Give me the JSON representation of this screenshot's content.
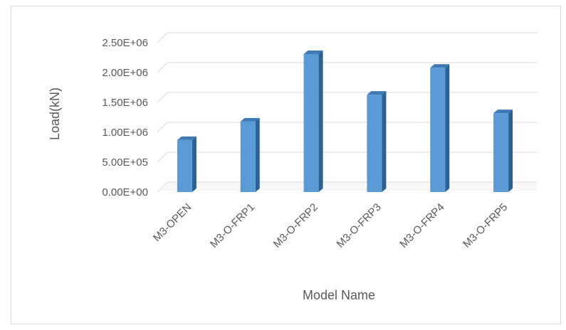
{
  "chart_data": {
    "type": "bar",
    "title": "",
    "xlabel": "Model Name",
    "ylabel": "Load(kN)",
    "categories": [
      "M3-OPEN",
      "M3-O-FRP1",
      "M3-O-FRP2",
      "M3-O-FRP3",
      "M3-O-FRP4",
      "M3-O-FRP5"
    ],
    "values": [
      870000,
      1180000,
      2310000,
      1630000,
      2080000,
      1320000
    ],
    "ylim": [
      0,
      2500000
    ],
    "yticks": [
      "0.00E+00",
      "5.00E+05",
      "1.00E+06",
      "1.50E+06",
      "2.00E+06",
      "2.50E+06"
    ],
    "grid": true,
    "legend": "none",
    "three_d": true,
    "colors": {
      "bar_front": "#5b9bd5",
      "bar_side": "#2e6191",
      "bar_top": "#3f7ab4",
      "grid": "#d9d9d9",
      "text": "#595959"
    }
  }
}
